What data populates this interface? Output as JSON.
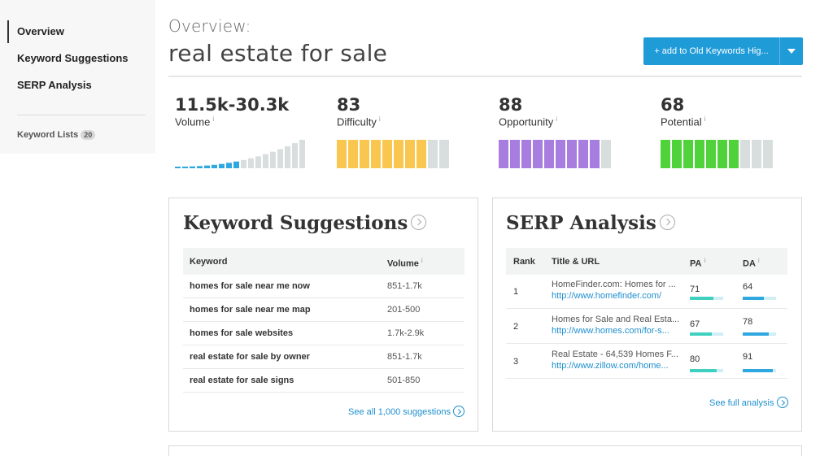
{
  "sidebar": {
    "items": [
      {
        "label": "Overview"
      },
      {
        "label": "Keyword Suggestions"
      },
      {
        "label": "SERP Analysis"
      }
    ],
    "keyword_lists": {
      "label": "Keyword Lists",
      "count": "20"
    }
  },
  "header": {
    "overview_label": "Overview:",
    "keyword": "real estate for sale",
    "add_button_label": "+ add to Old Keywords Hig..."
  },
  "metrics": [
    {
      "value": "11.5k-30.3k",
      "label": "Volume",
      "info": "i",
      "color": "#2fa8e0",
      "filled": 9,
      "total": 18
    },
    {
      "value": "83",
      "label": "Difficulty",
      "info": "i",
      "color": "#f9c74f",
      "filled": 8,
      "total": 10
    },
    {
      "value": "88",
      "label": "Opportunity",
      "info": "i",
      "color": "#a77ee0",
      "filled": 9,
      "total": 10
    },
    {
      "value": "68",
      "label": "Potential",
      "info": "i",
      "color": "#4fd23a",
      "filled": 7,
      "total": 10
    }
  ],
  "keyword_suggestions": {
    "title": "Keyword Suggestions",
    "col_keyword": "Keyword",
    "col_volume": "Volume",
    "col_volume_info": "i",
    "rows": [
      {
        "keyword": "homes for sale near me now",
        "volume": "851-1.7k"
      },
      {
        "keyword": "homes for sale near me map",
        "volume": "201-500"
      },
      {
        "keyword": "homes for sale websites",
        "volume": "1.7k-2.9k"
      },
      {
        "keyword": "real estate for sale by owner",
        "volume": "851-1.7k"
      },
      {
        "keyword": "real estate for sale signs",
        "volume": "501-850"
      }
    ],
    "see_all": "See all 1,000 suggestions"
  },
  "serp_analysis": {
    "title": "SERP Analysis",
    "col_rank": "Rank",
    "col_title": "Title & URL",
    "col_pa": "PA",
    "col_da": "DA",
    "info": "i",
    "rows": [
      {
        "rank": "1",
        "title": "HomeFinder.com: Homes for ...",
        "url": "http://www.homefinder.com/",
        "pa": "71",
        "da": "64"
      },
      {
        "rank": "2",
        "title": "Homes for Sale and Real Esta...",
        "url": "http://www.homes.com/for-s...",
        "pa": "67",
        "da": "78"
      },
      {
        "rank": "3",
        "title": "Real Estate - 64,539 Homes F...",
        "url": "http://www.zillow.com/home...",
        "pa": "80",
        "da": "91"
      }
    ],
    "see_full": "See full analysis",
    "pa_color": "#3fd0c0",
    "da_color": "#2fa8e0"
  }
}
